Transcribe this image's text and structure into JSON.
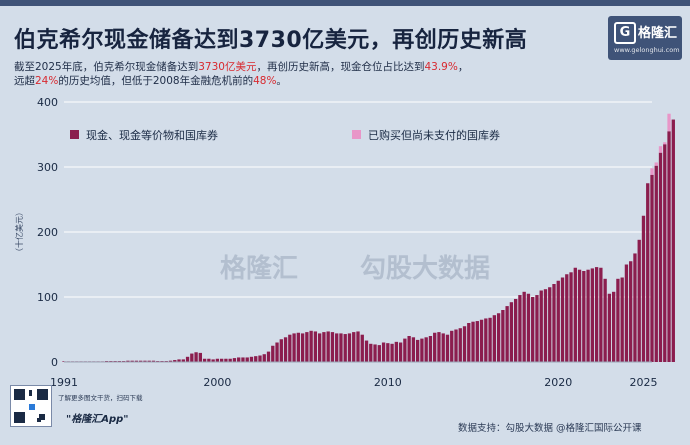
{
  "header": {
    "title": "伯克希尔现金储备达到3730亿美元，再创历史新高",
    "sub_line1_a": "截至2025年底，伯克希尔现金储备达到",
    "sub_line1_b": "3730亿美元",
    "sub_line1_c": "，再创历史新高，现金仓位占比达到",
    "sub_line1_d": "43.9%",
    "sub_line1_e": "，",
    "sub_line2_a": "远超",
    "sub_line2_b": "24%",
    "sub_line2_c": "的历史均值，但低于2008年金融危机前的",
    "sub_line2_d": "48%",
    "sub_line2_e": "。"
  },
  "brand": {
    "logo_glyph": "G",
    "logo_text": "格隆汇",
    "logo_url": "www.gelonghui.com",
    "watermark_left": "格隆汇",
    "watermark_right": "勾股大数据"
  },
  "footer": {
    "promo_line": "了解更多图文干货，扫码下载",
    "app_name": "\"格隆汇App\"",
    "source": "数据支持：勾股大数据 @格隆汇国际公开课"
  },
  "colors": {
    "cash": "#8b1d4e",
    "pending": "#e896c8",
    "background": "#d3dde9",
    "grid": "#ffffff",
    "accent_red": "#d8292f"
  },
  "chart_data": {
    "type": "bar",
    "stacked": true,
    "ylabel": "（十亿美元）",
    "ylim": [
      0,
      400
    ],
    "yticks": [
      0,
      100,
      200,
      300,
      400
    ],
    "xticks": [
      "1991",
      "2000",
      "2010",
      "2020",
      "2025"
    ],
    "xtick_values": [
      1991,
      2000,
      2010,
      2020,
      2025
    ],
    "x_range": [
      1991,
      2025.5
    ],
    "grid": "horizontal",
    "legend_position": "top",
    "series": [
      {
        "name": "现金、现金等价物和国库券",
        "color": "#8b1d4e",
        "points": [
          [
            1991.0,
            1
          ],
          [
            1991.25,
            1
          ],
          [
            1991.5,
            1
          ],
          [
            1991.75,
            1
          ],
          [
            1992.0,
            1
          ],
          [
            1992.25,
            1
          ],
          [
            1992.5,
            1
          ],
          [
            1992.75,
            1
          ],
          [
            1993.0,
            1
          ],
          [
            1993.25,
            1
          ],
          [
            1993.5,
            1.5
          ],
          [
            1993.75,
            1.5
          ],
          [
            1994.0,
            1.5
          ],
          [
            1994.25,
            1.5
          ],
          [
            1994.5,
            1.5
          ],
          [
            1994.75,
            2
          ],
          [
            1995.0,
            2
          ],
          [
            1995.25,
            2
          ],
          [
            1995.5,
            2
          ],
          [
            1995.75,
            2
          ],
          [
            1996.0,
            2
          ],
          [
            1996.25,
            2
          ],
          [
            1996.5,
            1.5
          ],
          [
            1996.75,
            1.5
          ],
          [
            1997.0,
            1.5
          ],
          [
            1997.25,
            2
          ],
          [
            1997.5,
            3
          ],
          [
            1997.75,
            4
          ],
          [
            1998.0,
            4
          ],
          [
            1998.25,
            8
          ],
          [
            1998.5,
            13
          ],
          [
            1998.75,
            15
          ],
          [
            1999.0,
            14
          ],
          [
            1999.25,
            5
          ],
          [
            1999.5,
            5
          ],
          [
            1999.75,
            4
          ],
          [
            2000.0,
            5
          ],
          [
            2000.25,
            5
          ],
          [
            2000.5,
            5
          ],
          [
            2000.75,
            5
          ],
          [
            2001.0,
            6
          ],
          [
            2001.25,
            7
          ],
          [
            2001.5,
            7
          ],
          [
            2001.75,
            7
          ],
          [
            2002.0,
            8
          ],
          [
            2002.25,
            9
          ],
          [
            2002.5,
            10
          ],
          [
            2002.75,
            12
          ],
          [
            2003.0,
            16
          ],
          [
            2003.25,
            25
          ],
          [
            2003.5,
            30
          ],
          [
            2003.75,
            35
          ],
          [
            2004.0,
            38
          ],
          [
            2004.25,
            42
          ],
          [
            2004.5,
            44
          ],
          [
            2004.75,
            45
          ],
          [
            2005.0,
            44
          ],
          [
            2005.25,
            46
          ],
          [
            2005.5,
            48
          ],
          [
            2005.75,
            47
          ],
          [
            2006.0,
            44
          ],
          [
            2006.25,
            46
          ],
          [
            2006.5,
            47
          ],
          [
            2006.75,
            46
          ],
          [
            2007.0,
            44
          ],
          [
            2007.25,
            44
          ],
          [
            2007.5,
            43
          ],
          [
            2007.75,
            44
          ],
          [
            2008.0,
            46
          ],
          [
            2008.25,
            47
          ],
          [
            2008.5,
            42
          ],
          [
            2008.75,
            33
          ],
          [
            2009.0,
            28
          ],
          [
            2009.25,
            27
          ],
          [
            2009.5,
            26
          ],
          [
            2009.75,
            30
          ],
          [
            2010.0,
            29
          ],
          [
            2010.25,
            28
          ],
          [
            2010.5,
            31
          ],
          [
            2010.75,
            30
          ],
          [
            2011.0,
            36
          ],
          [
            2011.25,
            40
          ],
          [
            2011.5,
            38
          ],
          [
            2011.75,
            34
          ],
          [
            2012.0,
            36
          ],
          [
            2012.25,
            38
          ],
          [
            2012.5,
            40
          ],
          [
            2012.75,
            45
          ],
          [
            2013.0,
            46
          ],
          [
            2013.25,
            44
          ],
          [
            2013.5,
            42
          ],
          [
            2013.75,
            48
          ],
          [
            2014.0,
            50
          ],
          [
            2014.25,
            52
          ],
          [
            2014.5,
            55
          ],
          [
            2014.75,
            60
          ],
          [
            2015.0,
            62
          ],
          [
            2015.25,
            63
          ],
          [
            2015.5,
            65
          ],
          [
            2015.75,
            67
          ],
          [
            2016.0,
            68
          ],
          [
            2016.25,
            72
          ],
          [
            2016.5,
            75
          ],
          [
            2016.75,
            80
          ],
          [
            2017.0,
            86
          ],
          [
            2017.25,
            92
          ],
          [
            2017.5,
            97
          ],
          [
            2017.75,
            103
          ],
          [
            2018.0,
            108
          ],
          [
            2018.25,
            105
          ],
          [
            2018.5,
            100
          ],
          [
            2018.75,
            103
          ],
          [
            2019.0,
            110
          ],
          [
            2019.25,
            112
          ],
          [
            2019.5,
            115
          ],
          [
            2019.75,
            120
          ],
          [
            2020.0,
            125
          ],
          [
            2020.25,
            130
          ],
          [
            2020.5,
            135
          ],
          [
            2020.75,
            138
          ],
          [
            2021.0,
            145
          ],
          [
            2021.25,
            142
          ],
          [
            2021.5,
            140
          ],
          [
            2021.75,
            142
          ],
          [
            2022.0,
            144
          ],
          [
            2022.25,
            146
          ],
          [
            2022.5,
            145
          ],
          [
            2022.75,
            128
          ],
          [
            2023.0,
            105
          ],
          [
            2023.25,
            108
          ],
          [
            2023.5,
            128
          ],
          [
            2023.75,
            130
          ],
          [
            2024.0,
            150
          ],
          [
            2024.25,
            155
          ],
          [
            2024.5,
            167
          ],
          [
            2024.75,
            188
          ],
          [
            2025.0,
            225
          ],
          [
            2025.25,
            275
          ],
          [
            2025.5,
            288
          ],
          [
            2025.75,
            302
          ],
          [
            2026.0,
            322
          ],
          [
            2026.25,
            335
          ],
          [
            2026.5,
            355
          ],
          [
            2026.75,
            373
          ]
        ]
      },
      {
        "name": "已购买但尚未支付的国库券",
        "color": "#e896c8",
        "points": [
          [
            2025.0,
            0
          ],
          [
            2025.25,
            0
          ],
          [
            2025.5,
            10
          ],
          [
            2025.75,
            5
          ],
          [
            2026.0,
            10
          ],
          [
            2026.25,
            3
          ],
          [
            2026.5,
            27
          ],
          [
            2026.75,
            0
          ]
        ]
      }
    ]
  }
}
